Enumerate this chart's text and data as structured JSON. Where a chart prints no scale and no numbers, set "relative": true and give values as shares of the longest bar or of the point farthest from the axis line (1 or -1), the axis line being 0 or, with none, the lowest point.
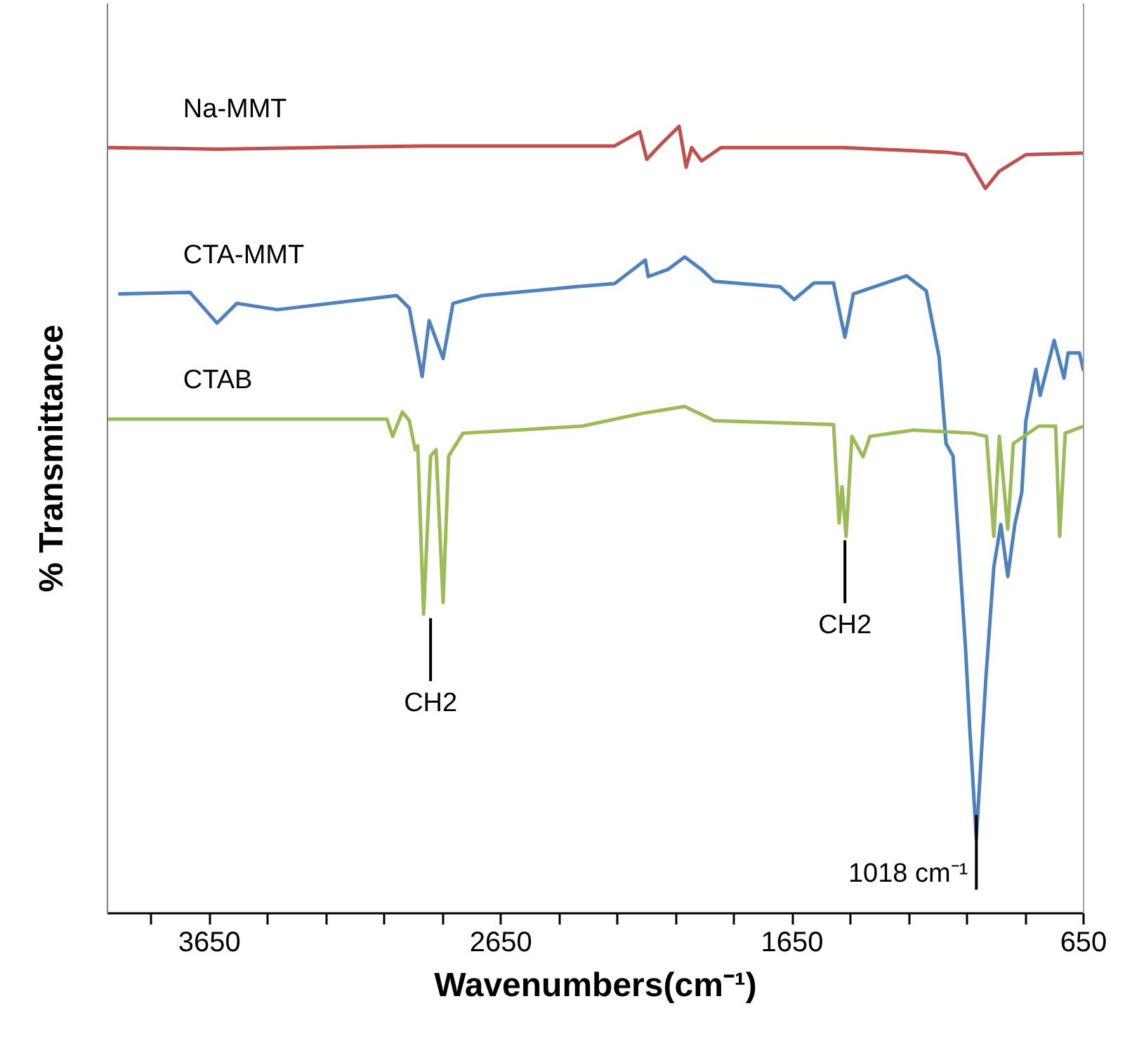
{
  "chart_data": {
    "type": "line",
    "relative": true,
    "xlabel": "Wavenumbers(cm⁻¹)",
    "ylabel": "% Transmittance",
    "xlim": [
      4000,
      650
    ],
    "xticks": [
      {
        "value": 3850,
        "label": null
      },
      3650,
      {
        "value": 3450,
        "label": null
      },
      {
        "value": 3250,
        "label": null
      },
      {
        "value": 3050,
        "label": null
      },
      {
        "value": 2850,
        "label": null
      },
      2650,
      {
        "value": 2450,
        "label": null
      },
      {
        "value": 2250,
        "label": null
      },
      {
        "value": 2050,
        "label": null
      },
      {
        "value": 1850,
        "label": null
      },
      1650,
      {
        "value": 1450,
        "label": null
      },
      {
        "value": 1250,
        "label": null
      },
      {
        "value": 1050,
        "label": null
      },
      {
        "value": 850,
        "label": null
      },
      650
    ],
    "tick_labels": "x",
    "grid": false,
    "marker": "none",
    "line_style": "solid",
    "series": [
      {
        "name": "Na-MMT",
        "color": "#c0504d",
        "x": [
          3998,
          3619,
          2920,
          2260,
          2236,
          2173,
          2149,
          2101,
          2038,
          2014,
          1995,
          1961,
          1894,
          1474,
          1122,
          1055,
          987,
          939,
          848,
          650
        ],
        "values": [
          0.973,
          0.971,
          0.975,
          0.975,
          0.98,
          0.993,
          0.958,
          0.977,
          1.0,
          0.948,
          0.973,
          0.956,
          0.973,
          0.973,
          0.967,
          0.964,
          0.921,
          0.943,
          0.964,
          0.966
        ]
      },
      {
        "name": "CTA-MMT",
        "color": "#4f81bd",
        "x": [
          3963,
          3717,
          3624,
          3556,
          3417,
          3007,
          2964,
          2920,
          2896,
          2848,
          2814,
          2713,
          2395,
          2260,
          2154,
          2144,
          2077,
          2019,
          1961,
          1918,
          1691,
          1643,
          1575,
          1508,
          1484,
          1469,
          1440,
          1257,
          1190,
          1146,
          1122,
          1098,
          1055,
          1040,
          1018,
          985,
          958,
          934,
          910,
          886,
          862,
          848,
          814,
          799,
          751,
          717,
          703,
          664,
          650
        ],
        "values": [
          0.787,
          0.789,
          0.75,
          0.775,
          0.767,
          0.785,
          0.769,
          0.682,
          0.753,
          0.705,
          0.775,
          0.785,
          0.796,
          0.8,
          0.83,
          0.809,
          0.818,
          0.834,
          0.818,
          0.803,
          0.796,
          0.78,
          0.801,
          0.801,
          0.758,
          0.732,
          0.787,
          0.81,
          0.791,
          0.707,
          0.597,
          0.581,
          0.336,
          0.231,
          0.095,
          0.3,
          0.44,
          0.494,
          0.428,
          0.494,
          0.535,
          0.626,
          0.691,
          0.658,
          0.728,
          0.68,
          0.712,
          0.712,
          0.689
        ]
      },
      {
        "name": "CTAB",
        "color": "#9bbb59",
        "x": [
          4000,
          3041,
          3021,
          2988,
          2964,
          2944,
          2935,
          2915,
          2891,
          2872,
          2848,
          2829,
          2780,
          2371,
          2168,
          2019,
          1918,
          1508,
          1489,
          1479,
          1465,
          1445,
          1407,
          1383,
          1233,
          1122,
          1031,
          983,
          958,
          939,
          910,
          891,
          804,
          746,
          732,
          713,
          650
        ],
        "values": [
          0.628,
          0.628,
          0.606,
          0.637,
          0.626,
          0.589,
          0.594,
          0.38,
          0.581,
          0.589,
          0.395,
          0.581,
          0.61,
          0.619,
          0.635,
          0.644,
          0.626,
          0.621,
          0.496,
          0.542,
          0.479,
          0.606,
          0.58,
          0.606,
          0.614,
          0.612,
          0.61,
          0.606,
          0.479,
          0.606,
          0.488,
          0.597,
          0.619,
          0.619,
          0.479,
          0.61,
          0.619
        ]
      }
    ],
    "annotations": [
      {
        "text": "CH2",
        "x": 2891,
        "y": 0.38
      },
      {
        "text": "CH2",
        "x": 1469,
        "y": 0.479
      },
      {
        "text": "1018 cm⁻¹",
        "x": 1018,
        "y": 0.095
      }
    ]
  }
}
